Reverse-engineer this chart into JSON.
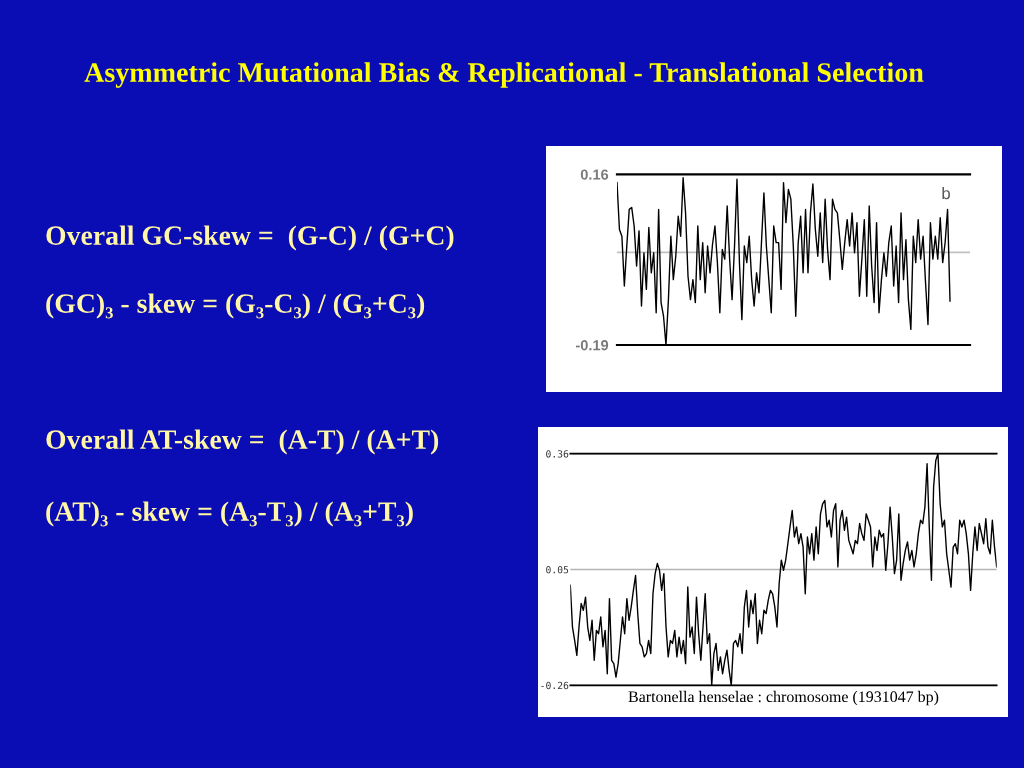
{
  "chart_data": [
    {
      "type": "other",
      "title": "Asymmetric Mutational Bias & Replicational - Translational Selection",
      "annotations": [
        "Overall GC-skew =  (G-C) / (G+C)",
        "(GC)₃ - skew = (G₃-C₃) / (G₃+C₃)",
        "Overall AT-skew =  (A-T) / (A+T)",
        "(AT)₃ - skew = (A₃-T₃) / (A₃+T₃)"
      ]
    },
    {
      "type": "line",
      "color": "#000000",
      "ylim": [
        -0.19,
        0.16
      ],
      "yticks": [
        -0.19,
        0.16
      ],
      "tick_labels": "y",
      "ref_lines": [
        {
          "axis": "y",
          "value": 0,
          "color": "#c0c0c0"
        }
      ],
      "annotations": [
        "b"
      ],
      "categories": [
        null,
        null,
        null,
        null,
        null,
        null,
        null,
        null,
        null,
        null,
        null,
        null,
        null,
        null,
        null,
        null,
        null,
        null,
        null,
        null,
        null,
        null,
        null,
        null,
        null,
        null,
        null,
        null,
        null,
        null,
        null,
        null,
        null,
        null,
        null,
        null,
        null,
        null,
        null,
        null,
        null,
        null,
        null,
        null,
        null,
        null,
        null,
        null,
        null,
        null,
        null,
        null,
        null,
        null,
        null,
        null,
        null,
        null,
        null,
        null,
        null,
        null,
        null,
        null,
        null,
        null,
        null,
        null,
        null,
        null,
        null,
        null,
        null,
        null,
        null,
        null,
        null,
        null,
        null,
        null,
        null,
        null,
        null,
        null,
        null,
        null,
        null,
        null,
        null,
        null,
        null,
        null,
        null,
        null,
        null,
        null,
        null,
        null,
        null,
        null,
        null,
        null,
        null,
        null,
        null,
        null,
        null,
        null,
        null,
        null,
        null,
        null,
        null,
        null,
        null,
        null,
        null,
        null,
        null,
        null,
        null,
        null,
        null,
        null,
        null,
        null,
        null,
        null,
        null,
        null,
        null,
        null,
        null,
        null,
        null,
        null,
        null
      ],
      "values": [
        0.143,
        0.047,
        0.033,
        -0.069,
        0.013,
        0.088,
        0.092,
        0.054,
        -0.028,
        0.044,
        -0.11,
        -0.001,
        -0.076,
        0.051,
        -0.042,
        -0.001,
        -0.124,
        0.088,
        -0.103,
        -0.131,
        -0.19,
        -0.097,
        0.033,
        -0.056,
        -0.008,
        0.074,
        0.033,
        0.153,
        0.081,
        -0.049,
        -0.097,
        -0.056,
        -0.103,
        0.054,
        -0.056,
        0.02,
        -0.083,
        0.013,
        -0.042,
        0.016,
        0.054,
        -0.021,
        -0.124,
        0.006,
        -0.014,
        0.095,
        -0.014,
        -0.097,
        0.013,
        0.15,
        -0.021,
        -0.138,
        0.013,
        -0.021,
        0.033,
        -0.056,
        -0.11,
        -0.042,
        -0.083,
        0.02,
        0.122,
        0.013,
        -0.056,
        -0.124,
        0.054,
        0.02,
        0.02,
        -0.076,
        0.143,
        0.061,
        0.129,
        0.109,
        0.013,
        -0.131,
        0.02,
        0.074,
        -0.042,
        0.088,
        -0.042,
        0.081,
        0.14,
        0.047,
        -0.008,
        0.081,
        -0.021,
        0.109,
        0.006,
        -0.056,
        0.109,
        0.088,
        0.081,
        0.026,
        -0.035,
        0.02,
        0.067,
        0.013,
        0.081,
        -0.001,
        0.061,
        -0.09,
        -0.014,
        0.067,
        -0.09,
        0.095,
        -0.028,
        -0.103,
        0.061,
        -0.124,
        -0.056,
        -0.001,
        -0.049,
        0.02,
        0.054,
        -0.069,
        0.013,
        -0.103,
        0.081,
        -0.056,
        0.026,
        -0.097,
        -0.158,
        0.033,
        -0.021,
        0.067,
        -0.014,
        0.033,
        -0.062,
        -0.148,
        0.061,
        -0.014,
        0.033,
        -0.014,
        0.071,
        -0.021,
        0.02,
        0.088,
        -0.1
      ]
    },
    {
      "type": "line",
      "color": "#000000",
      "xlabel": "Bartonella henselae : chromosome (1931047 bp)",
      "ylim": [
        -0.26,
        0.36
      ],
      "yticks": [
        -0.26,
        0.05,
        0.36
      ],
      "grid": "y",
      "tick_labels": "y",
      "categories": [
        null,
        null,
        null,
        null,
        null,
        null,
        null,
        null,
        null,
        null,
        null,
        null,
        null,
        null,
        null,
        null,
        null,
        null,
        null,
        null,
        null,
        null,
        null,
        null,
        null,
        null,
        null,
        null,
        null,
        null,
        null,
        null,
        null,
        null,
        null,
        null,
        null,
        null,
        null,
        null,
        null,
        null,
        null,
        null,
        null,
        null,
        null,
        null,
        null,
        null,
        null,
        null,
        null,
        null,
        null,
        null,
        null,
        null,
        null,
        null,
        null,
        null,
        null,
        null,
        null,
        null,
        null,
        null,
        null,
        null,
        null,
        null,
        null,
        null,
        null,
        null,
        null,
        null,
        null,
        null,
        null,
        null,
        null,
        null,
        null,
        null,
        null,
        null,
        null,
        null,
        null,
        null,
        null,
        null,
        null,
        null,
        null,
        null,
        null,
        null,
        null,
        null,
        null,
        null,
        null,
        null,
        null,
        null,
        null,
        null,
        null,
        null,
        null,
        null,
        null,
        null,
        null,
        null,
        null,
        null,
        null,
        null,
        null,
        null,
        null,
        null,
        null,
        null,
        null,
        null,
        null,
        null,
        null,
        null,
        null,
        null,
        null,
        null,
        null,
        null,
        null,
        null,
        null,
        null,
        null,
        null,
        null,
        null,
        null,
        null,
        null,
        null,
        null,
        null,
        null,
        null,
        null,
        null,
        null,
        null,
        null,
        null,
        null,
        null,
        null,
        null,
        null,
        null,
        null,
        null,
        null,
        null,
        null,
        null,
        null,
        null,
        null,
        null,
        null,
        null,
        null,
        null,
        null,
        null,
        null,
        null,
        null,
        null,
        null,
        null,
        null,
        null,
        null,
        null,
        null,
        null,
        null
      ],
      "values": [
        0.008,
        -0.104,
        -0.14,
        -0.18,
        -0.104,
        -0.041,
        -0.059,
        -0.024,
        -0.104,
        -0.14,
        -0.086,
        -0.193,
        -0.113,
        -0.122,
        -0.077,
        -0.157,
        -0.113,
        -0.229,
        -0.028,
        -0.193,
        -0.202,
        -0.238,
        -0.202,
        -0.14,
        -0.077,
        -0.122,
        -0.028,
        -0.086,
        -0.05,
        -0.006,
        0.034,
        -0.068,
        -0.148,
        -0.157,
        -0.184,
        -0.175,
        -0.14,
        -0.175,
        -0.015,
        0.039,
        0.066,
        0.048,
        -0.006,
        0.039,
        -0.104,
        -0.184,
        -0.14,
        -0.148,
        -0.113,
        -0.184,
        -0.131,
        -0.175,
        -0.14,
        -0.202,
        0.003,
        -0.131,
        -0.104,
        -0.175,
        -0.024,
        -0.122,
        -0.193,
        -0.104,
        -0.015,
        -0.148,
        -0.122,
        -0.26,
        -0.175,
        -0.148,
        -0.22,
        -0.184,
        -0.229,
        -0.193,
        -0.166,
        -0.22,
        -0.26,
        -0.148,
        -0.14,
        -0.157,
        -0.122,
        -0.175,
        -0.05,
        -0.006,
        -0.104,
        -0.032,
        -0.068,
        -0.015,
        -0.148,
        -0.086,
        -0.122,
        -0.059,
        -0.068,
        -0.032,
        -0.006,
        -0.015,
        -0.05,
        -0.104,
        0.012,
        0.075,
        0.048,
        0.075,
        0.119,
        0.164,
        0.208,
        0.137,
        0.164,
        0.119,
        0.146,
        0.11,
        -0.015,
        0.137,
        0.092,
        0.146,
        0.075,
        0.164,
        0.092,
        0.199,
        0.226,
        0.235,
        0.164,
        0.182,
        0.137,
        0.208,
        0.226,
        0.057,
        0.182,
        0.208,
        0.155,
        0.19,
        0.128,
        0.11,
        0.092,
        0.128,
        0.119,
        0.173,
        0.146,
        0.128,
        0.199,
        0.182,
        0.164,
        0.057,
        0.137,
        0.101,
        0.155,
        0.137,
        0.146,
        0.048,
        0.119,
        0.217,
        0.137,
        0.039,
        0.075,
        0.199,
        0.021,
        0.066,
        0.101,
        0.124,
        0.075,
        0.101,
        0.057,
        0.092,
        0.146,
        0.182,
        0.173,
        0.217,
        0.333,
        0.164,
        0.021,
        0.271,
        0.342,
        0.36,
        0.226,
        0.164,
        0.182,
        0.092,
        0.048,
        0.003,
        0.11,
        0.119,
        0.092,
        0.182,
        0.164,
        0.182,
        0.146,
        0.092,
        -0.006,
        0.092,
        0.164,
        0.101,
        0.173,
        0.146,
        0.119,
        0.186,
        0.11,
        0.092,
        0.182,
        0.11,
        0.057
      ]
    }
  ]
}
